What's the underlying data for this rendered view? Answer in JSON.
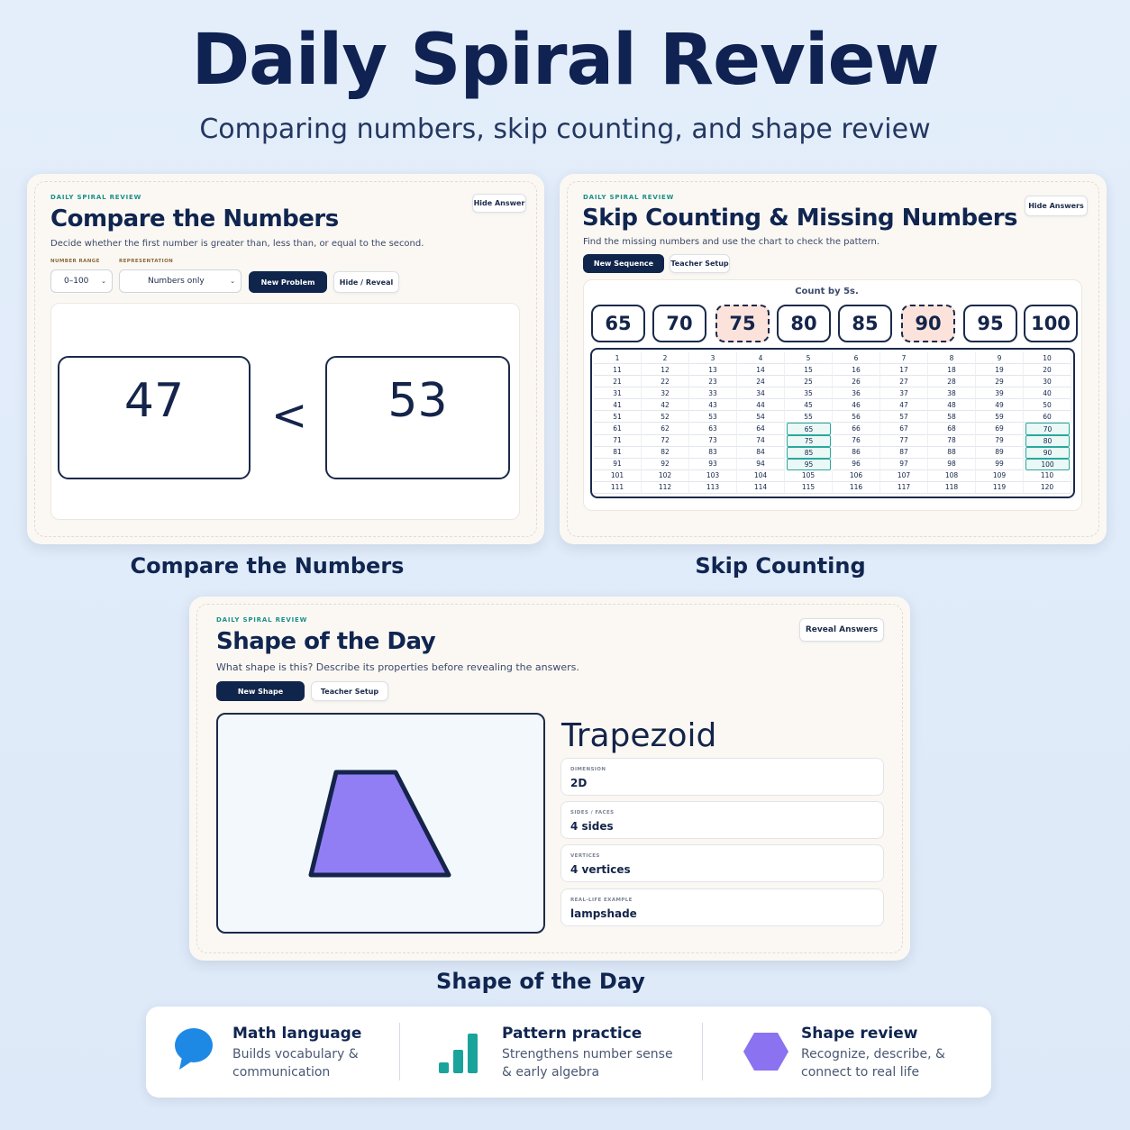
{
  "header": {
    "title": "Daily Spiral Review",
    "subtitle": "Comparing numbers, skip counting, and shape review"
  },
  "compare": {
    "eyebrow": "DAILY SPIRAL REVIEW",
    "title": "Compare the Numbers",
    "description": "Decide whether the first number is greater than, less than, or equal to the second.",
    "hide_answer_label": "Hide Answer",
    "number_range_label": "NUMBER RANGE",
    "number_range_value": "0–100",
    "representation_label": "REPRESENTATION",
    "representation_value": "Numbers only",
    "new_problem_label": "New Problem",
    "hide_reveal_label": "Hide / Reveal",
    "left_number": "47",
    "symbol": "<",
    "right_number": "53",
    "caption": "Compare the Numbers"
  },
  "skip": {
    "eyebrow": "DAILY SPIRAL REVIEW",
    "title": "Skip Counting & Missing Numbers",
    "description": "Find the missing numbers and use the chart to check the pattern.",
    "hide_answers_label": "Hide Answers",
    "new_sequence_label": "New Sequence",
    "teacher_setup_label": "Teacher Setup",
    "count_label": "Count by 5s.",
    "sequence": [
      {
        "value": "65",
        "missing": false
      },
      {
        "value": "70",
        "missing": false
      },
      {
        "value": "75",
        "missing": true
      },
      {
        "value": "80",
        "missing": false
      },
      {
        "value": "85",
        "missing": false
      },
      {
        "value": "90",
        "missing": true
      },
      {
        "value": "95",
        "missing": false
      },
      {
        "value": "100",
        "missing": false
      }
    ],
    "chart_start": 1,
    "chart_end": 120,
    "highlighted": [
      65,
      70,
      75,
      80,
      85,
      90,
      95,
      100
    ],
    "caption": "Skip Counting"
  },
  "shape": {
    "eyebrow": "DAILY SPIRAL REVIEW",
    "title": "Shape of the Day",
    "description": "What shape is this? Describe its properties before revealing the answers.",
    "reveal_answers_label": "Reveal Answers",
    "new_shape_label": "New Shape",
    "teacher_setup_label": "Teacher Setup",
    "shape_name": "Trapezoid",
    "shape_color": "#917ef5",
    "properties": [
      {
        "label": "DIMENSION",
        "value": "2D"
      },
      {
        "label": "SIDES / FACES",
        "value": "4 sides"
      },
      {
        "label": "VERTICES",
        "value": "4 vertices"
      },
      {
        "label": "REAL-LIFE EXAMPLE",
        "value": "lampshade"
      }
    ],
    "caption": "Shape of the Day"
  },
  "features": [
    {
      "icon": "speech-bubble-icon",
      "title": "Math language",
      "desc_line1": "Builds vocabulary &",
      "desc_line2": "communication",
      "color": "#1e88e5"
    },
    {
      "icon": "bar-chart-icon",
      "title": "Pattern practice",
      "desc_line1": "Strengthens number sense",
      "desc_line2": "& early algebra",
      "color": "#1aa39a"
    },
    {
      "icon": "hexagon-icon",
      "title": "Shape review",
      "desc_line1": "Recognize, describe, &",
      "desc_line2": "connect to real life",
      "color": "#8b72f0"
    }
  ]
}
